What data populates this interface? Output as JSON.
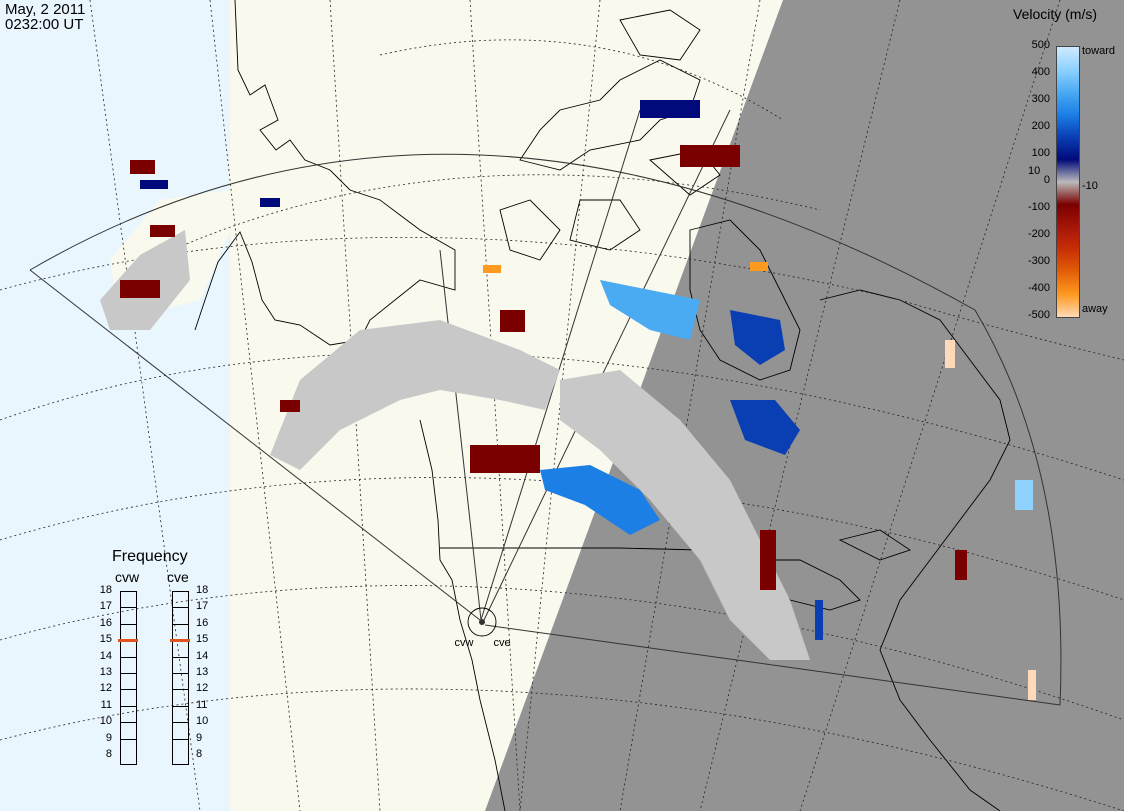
{
  "header": {
    "date": "May, 2 2011",
    "time": "0232:00 UT"
  },
  "map": {
    "colors": {
      "ocean": "#eaf6fd",
      "land": "#faf9ed",
      "night": "#939393",
      "grid_line": "#222222",
      "low_velocity": "#c8c8c8"
    },
    "radar_sites": [
      {
        "name": "cvw"
      },
      {
        "name": "cve"
      }
    ]
  },
  "frequency_panel": {
    "title": "Frequency",
    "radars": [
      {
        "name": "cvw",
        "frequency": 15
      },
      {
        "name": "cve",
        "frequency": 15
      }
    ],
    "ticks": [
      "18",
      "17",
      "16",
      "15",
      "14",
      "13",
      "12",
      "11",
      "10",
      "9",
      "8"
    ],
    "marker_color": "#e1541d"
  },
  "velocity_legend": {
    "title": "Velocity (m/s)",
    "scale_labels": [
      "500",
      "400",
      "300",
      "200",
      "100",
      "0",
      "-100",
      "-200",
      "-300",
      "-400",
      "-500"
    ],
    "inner_labels": [
      "10",
      "-10"
    ],
    "toward_label": "toward",
    "away_label": "away",
    "colors": [
      "#cfeaff",
      "#8fd2ff",
      "#4aaaf2",
      "#1c7fe6",
      "#0a3fb4",
      "#010a7a",
      "#bbbbbb",
      "#7a0000",
      "#a51508",
      "#c92f06",
      "#e35f08",
      "#ff9a20",
      "#ffd9b8"
    ]
  }
}
